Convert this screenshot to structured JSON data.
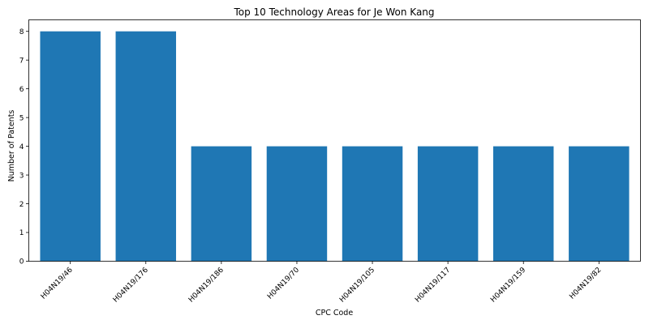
{
  "chart_data": {
    "type": "bar",
    "title": "Top 10 Technology Areas for Je Won Kang",
    "xlabel": "CPC Code",
    "ylabel": "Number of Patents",
    "categories": [
      "H04N19/46",
      "H04N19/176",
      "H04N19/186",
      "H04N19/70",
      "H04N19/105",
      "H04N19/117",
      "H04N19/159",
      "H04N19/82"
    ],
    "values": [
      8,
      8,
      4,
      4,
      4,
      4,
      4,
      4
    ],
    "ylim": [
      0,
      8.4
    ],
    "yticks": [
      0,
      1,
      2,
      3,
      4,
      5,
      6,
      7,
      8
    ],
    "bar_color": "#1f77b4",
    "grid": false,
    "legend": "none",
    "xtick_rotation_deg": 45
  }
}
